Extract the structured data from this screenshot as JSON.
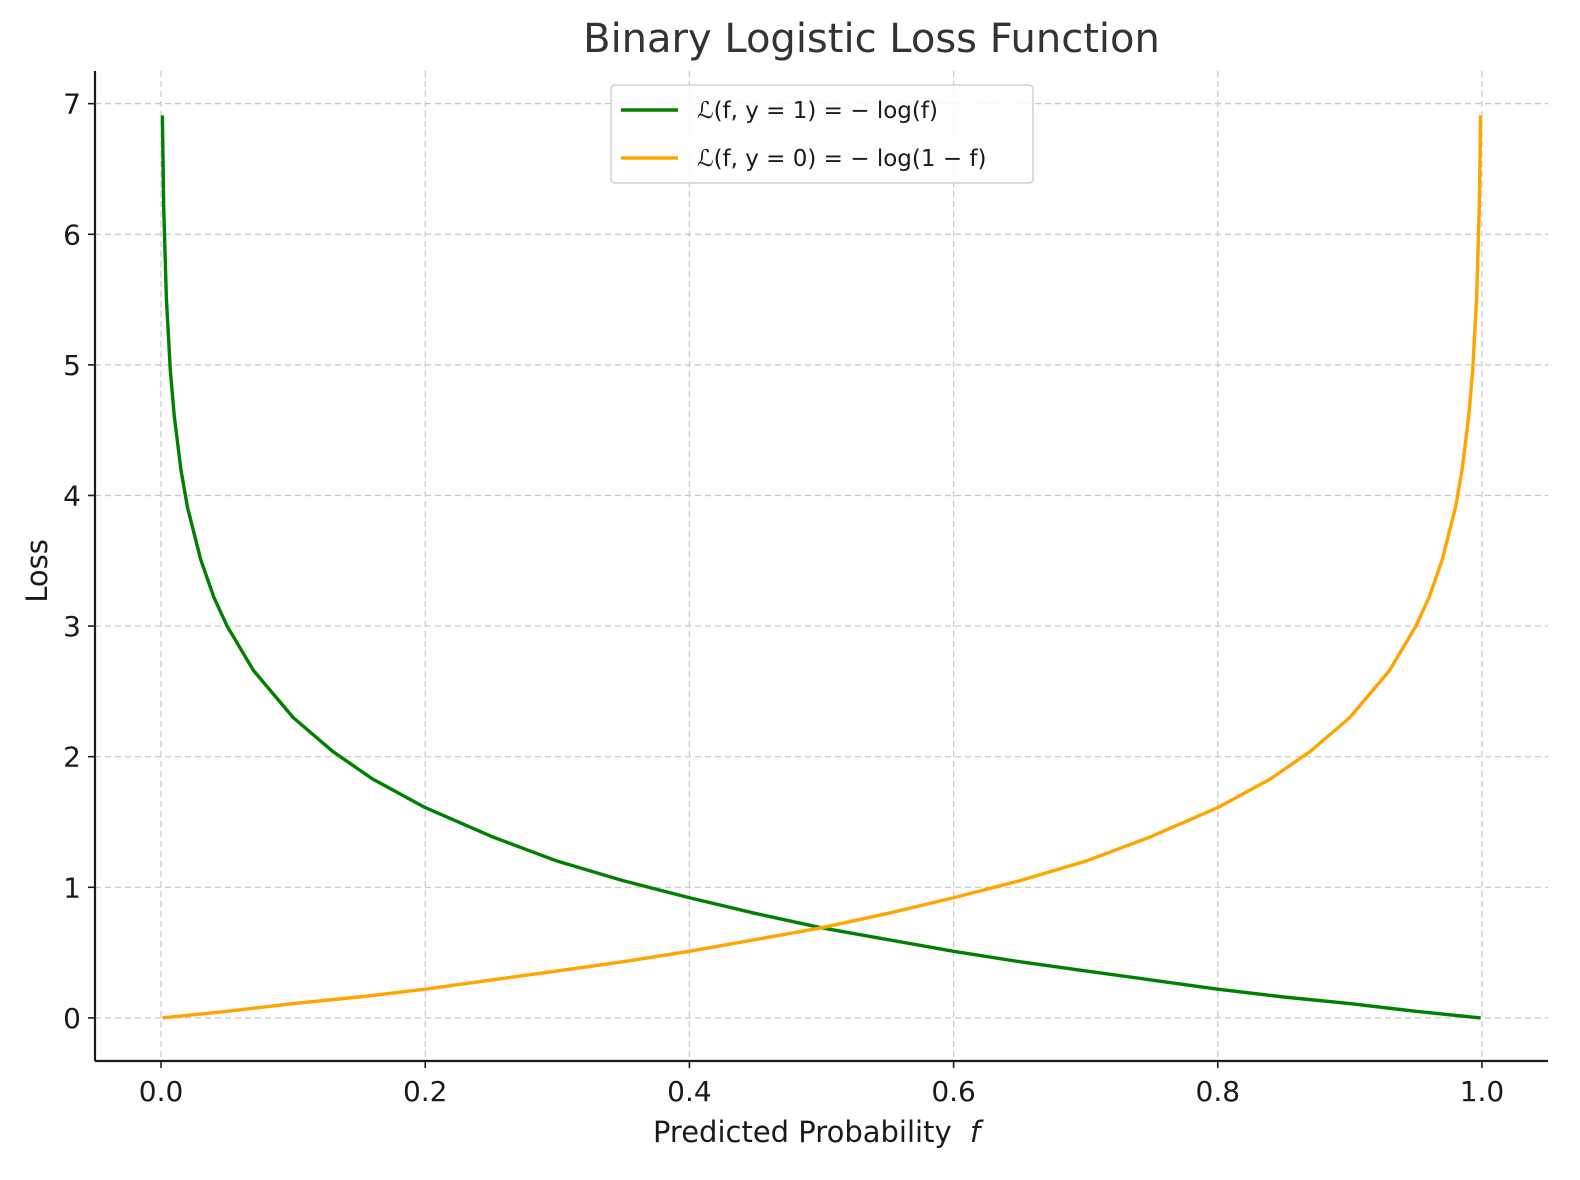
{
  "chart_data": {
    "type": "line",
    "title": "Binary Logistic Loss Function",
    "xlabel": "Predicted Probability",
    "xlabel_var": "f",
    "ylabel": "Loss",
    "xlim": [
      -0.05,
      1.05
    ],
    "ylim": [
      -0.33,
      7.25
    ],
    "x_ticks": [
      0.0,
      0.2,
      0.4,
      0.6,
      0.8,
      1.0
    ],
    "x_tick_labels": [
      "0.0",
      "0.2",
      "0.4",
      "0.6",
      "0.8",
      "1.0"
    ],
    "y_ticks": [
      0,
      1,
      2,
      3,
      4,
      5,
      6,
      7
    ],
    "y_tick_labels": [
      "0",
      "1",
      "2",
      "3",
      "4",
      "5",
      "6",
      "7"
    ],
    "grid": true,
    "legend_position": "top-center",
    "series": [
      {
        "name": "ℒ(f, y = 1) = − log(f)",
        "color": "#008000",
        "x": [
          0.001,
          0.002,
          0.004,
          0.007,
          0.01,
          0.015,
          0.02,
          0.03,
          0.04,
          0.05,
          0.07,
          0.1,
          0.13,
          0.16,
          0.2,
          0.25,
          0.3,
          0.35,
          0.4,
          0.45,
          0.5,
          0.55,
          0.6,
          0.65,
          0.7,
          0.75,
          0.8,
          0.85,
          0.9,
          0.95,
          0.999
        ],
        "values": [
          6.91,
          6.21,
          5.52,
          4.96,
          4.61,
          4.2,
          3.91,
          3.51,
          3.22,
          3.0,
          2.66,
          2.3,
          2.04,
          1.83,
          1.61,
          1.39,
          1.2,
          1.05,
          0.92,
          0.8,
          0.69,
          0.6,
          0.51,
          0.43,
          0.36,
          0.29,
          0.22,
          0.16,
          0.11,
          0.05,
          0.0
        ]
      },
      {
        "name": "ℒ(f, y = 0) = − log(1 − f)",
        "color": "#ffa500",
        "x": [
          0.001,
          0.05,
          0.1,
          0.15,
          0.2,
          0.25,
          0.3,
          0.35,
          0.4,
          0.45,
          0.5,
          0.55,
          0.6,
          0.65,
          0.7,
          0.75,
          0.8,
          0.84,
          0.87,
          0.9,
          0.93,
          0.95,
          0.96,
          0.97,
          0.98,
          0.985,
          0.99,
          0.993,
          0.996,
          0.998,
          0.999
        ],
        "values": [
          0.0,
          0.05,
          0.11,
          0.16,
          0.22,
          0.29,
          0.36,
          0.43,
          0.51,
          0.6,
          0.69,
          0.8,
          0.92,
          1.05,
          1.2,
          1.39,
          1.61,
          1.83,
          2.04,
          2.3,
          2.66,
          3.0,
          3.22,
          3.51,
          3.91,
          4.2,
          4.61,
          4.96,
          5.52,
          6.21,
          6.91
        ]
      }
    ]
  }
}
